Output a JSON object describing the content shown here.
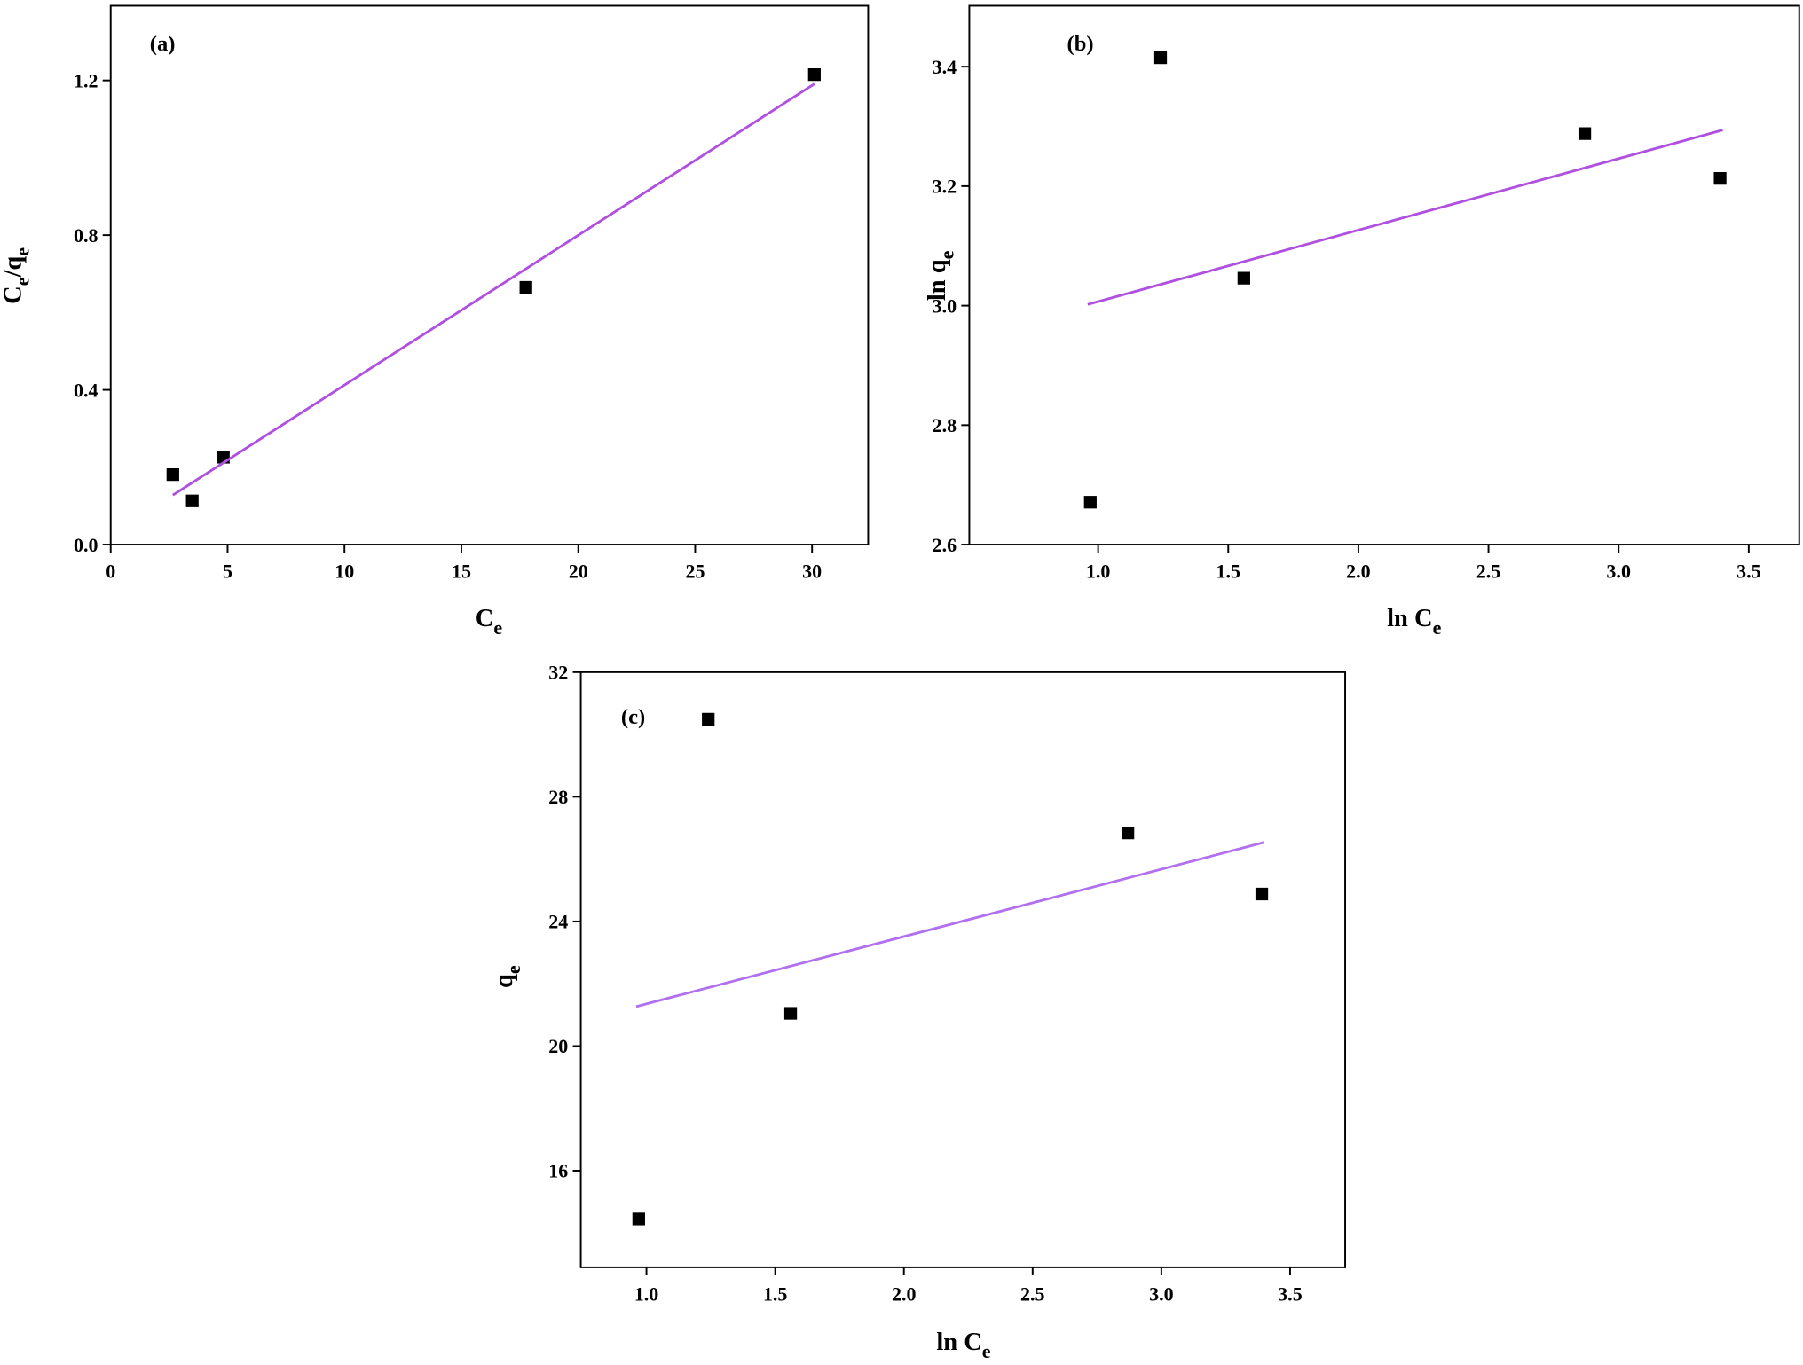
{
  "chart_data": [
    {
      "type": "scatter",
      "panel": "(a)",
      "xlabel": [
        {
          "text": "C"
        },
        {
          "text": "e",
          "sub": true
        }
      ],
      "ylabel": [
        {
          "text": "C"
        },
        {
          "text": "e",
          "sub": true
        },
        {
          "text": "/q"
        },
        {
          "text": "e",
          "sub": true
        }
      ],
      "x": [
        2.66,
        3.49,
        4.82,
        17.76,
        30.1
      ],
      "values": [
        0.181,
        0.113,
        0.226,
        0.665,
        1.215
      ],
      "color": "#000000",
      "fit": {
        "x": [
          2.66,
          30.1
        ],
        "values": [
          0.128,
          1.191
        ],
        "color": "#b050e0"
      },
      "xlim": [
        0,
        32.4
      ],
      "ylim": [
        0,
        1.393
      ],
      "xticks": [
        0,
        5,
        10,
        15,
        20,
        25,
        30
      ],
      "yticks": [
        {
          "value": 0,
          "label": "0.0"
        },
        0.4,
        0.8,
        1.2
      ]
    },
    {
      "type": "scatter",
      "panel": "(b)",
      "xlabel": [
        {
          "text": "ln C"
        },
        {
          "text": "e",
          "sub": true
        }
      ],
      "ylabel": [
        {
          "text": "ln q"
        },
        {
          "text": "e",
          "sub": true
        }
      ],
      "x": [
        0.97,
        1.24,
        1.56,
        2.87,
        3.39
      ],
      "values": [
        2.671,
        3.415,
        3.046,
        3.288,
        3.213
      ],
      "color": "#000000",
      "fit": {
        "x": [
          0.96,
          3.4
        ],
        "values": [
          3.002,
          3.294
        ],
        "color": "#b050e0"
      },
      "xlim": [
        0.505,
        3.694
      ],
      "ylim": [
        2.6,
        3.502
      ],
      "xticks": [
        {
          "value": 1,
          "label": "1.0"
        },
        1.5,
        {
          "value": 2,
          "label": "2.0"
        },
        2.5,
        {
          "value": 3,
          "label": "3.0"
        },
        3.5
      ],
      "yticks": [
        2.6,
        2.8,
        {
          "value": 3,
          "label": "3.0"
        },
        3.2,
        3.4
      ]
    },
    {
      "type": "scatter",
      "panel": "(c)",
      "xlabel": [
        {
          "text": "ln C"
        },
        {
          "text": "e",
          "sub": true
        }
      ],
      "ylabel": [
        {
          "text": "q"
        },
        {
          "text": "e",
          "sub": true
        }
      ],
      "x": [
        0.97,
        1.24,
        1.56,
        2.87,
        3.39
      ],
      "values": [
        14.45,
        30.49,
        21.05,
        26.84,
        24.88
      ],
      "color": "#000000",
      "fit": {
        "x": [
          0.96,
          3.4
        ],
        "values": [
          21.27,
          26.54
        ],
        "color": "#b070f0"
      },
      "xlim": [
        0.745,
        3.714
      ],
      "ylim": [
        12.9,
        32
      ],
      "xticks": [
        {
          "value": 1,
          "label": "1.0"
        },
        1.5,
        {
          "value": 2,
          "label": "2.0"
        },
        2.5,
        {
          "value": 3,
          "label": "3.0"
        },
        3.5
      ],
      "yticks": [
        16,
        20,
        24,
        28,
        32
      ]
    }
  ]
}
